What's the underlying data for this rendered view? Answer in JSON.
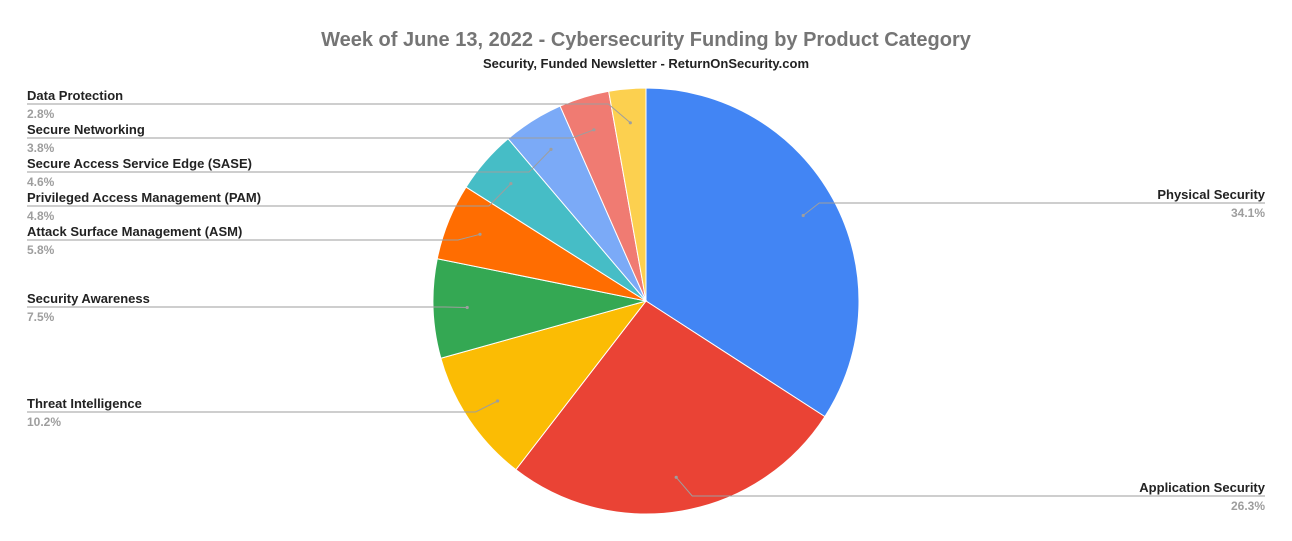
{
  "chart_data": {
    "type": "pie",
    "title": "Week of June 13, 2022 - Cybersecurity Funding by Product Category",
    "subtitle": "Security, Funded Newsletter - ReturnOnSecurity.com",
    "start_angle_deg": 0,
    "direction": "clockwise",
    "legend": "labeled",
    "slices": [
      {
        "label": "Physical Security",
        "value": 34.1,
        "pct_label": "34.1%",
        "color": "#4285f4",
        "side": "right"
      },
      {
        "label": "Application Security",
        "value": 26.3,
        "pct_label": "26.3%",
        "color": "#ea4335",
        "side": "right"
      },
      {
        "label": "Threat Intelligence",
        "value": 10.2,
        "pct_label": "10.2%",
        "color": "#fbbc04",
        "side": "left"
      },
      {
        "label": "Security Awareness",
        "value": 7.5,
        "pct_label": "7.5%",
        "color": "#34a853",
        "side": "left"
      },
      {
        "label": "Attack Surface Management (ASM)",
        "value": 5.8,
        "pct_label": "5.8%",
        "color": "#ff6d01",
        "side": "left"
      },
      {
        "label": "Privileged Access Management (PAM)",
        "value": 4.8,
        "pct_label": "4.8%",
        "color": "#46bdc6",
        "side": "left"
      },
      {
        "label": "Secure Access Service Edge (SASE)",
        "value": 4.6,
        "pct_label": "4.6%",
        "color": "#7baaf7",
        "side": "left"
      },
      {
        "label": "Secure Networking",
        "value": 3.8,
        "pct_label": "3.8%",
        "color": "#f07b72",
        "side": "left"
      },
      {
        "label": "Data Protection",
        "value": 2.8,
        "pct_label": "2.8%",
        "color": "#fcd04f",
        "side": "left"
      }
    ]
  }
}
